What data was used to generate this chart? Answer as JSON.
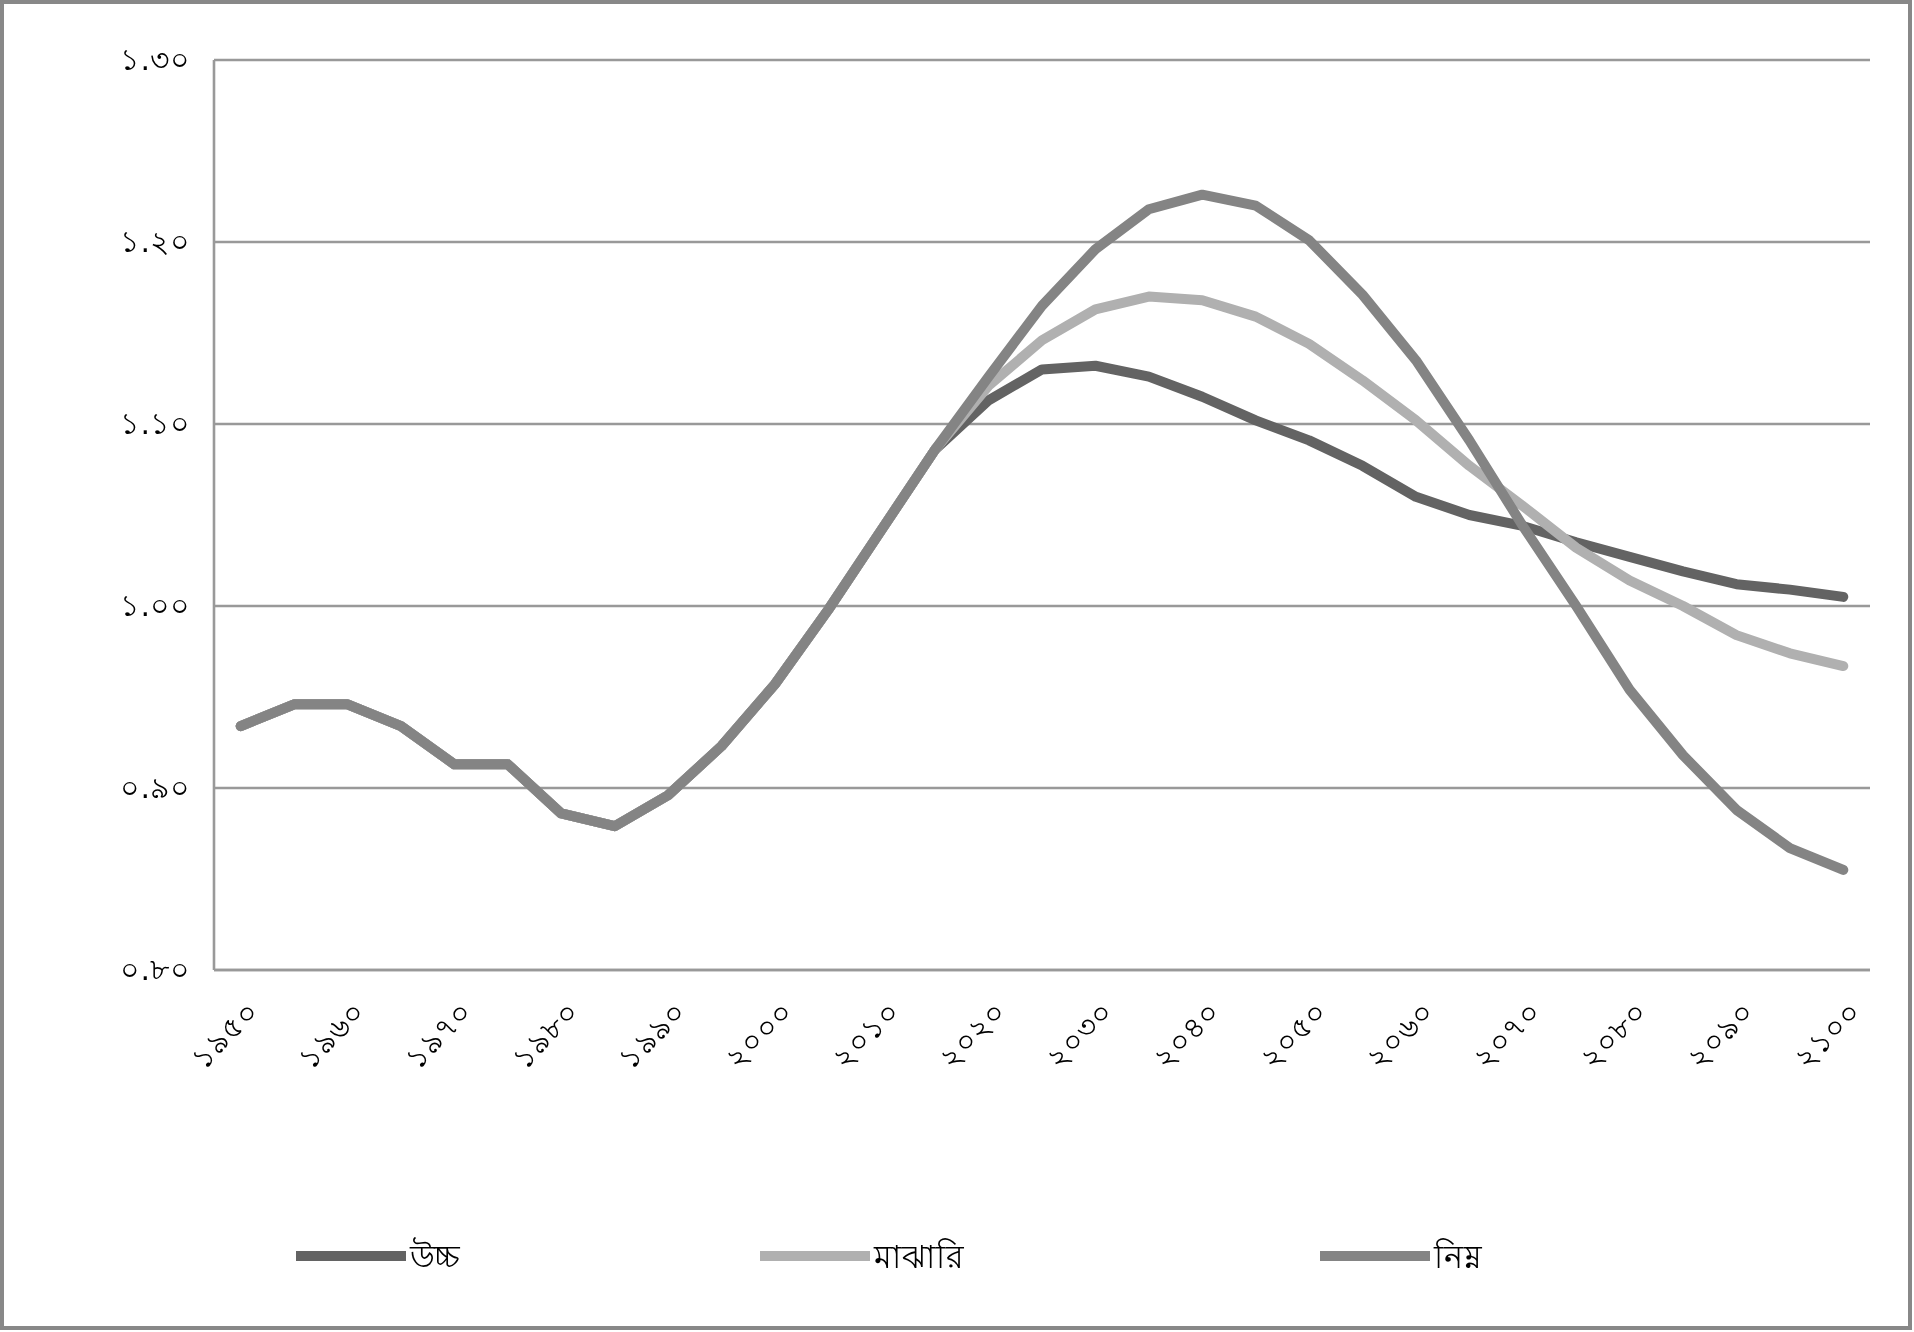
{
  "chart_data": {
    "type": "line",
    "categories": [
      "১৯৫০",
      null,
      "১৯৬০",
      null,
      "১৯৭০",
      null,
      "১৯৮০",
      null,
      "১৯৯০",
      null,
      "২০০০",
      null,
      "২০১০",
      null,
      "২০২০",
      null,
      "২০৩০",
      null,
      "২০৪০",
      null,
      "২০৫০",
      null,
      "২০৬০",
      null,
      "২০৭০",
      null,
      "২০৮০",
      null,
      "২০৯০",
      null,
      "২১০০"
    ],
    "series": [
      {
        "name": "উচ্চ",
        "color": "#636363",
        "values": [
          0.934,
          0.946,
          0.946,
          0.934,
          0.913,
          0.913,
          0.886,
          0.879,
          0.896,
          0.923,
          0.957,
          0.998,
          1.042,
          1.086,
          1.113,
          1.13,
          1.132,
          1.126,
          1.115,
          1.102,
          1.091,
          1.077,
          1.06,
          1.05,
          1.044,
          1.035,
          1.027,
          1.019,
          1.012,
          1.009,
          1.005
        ]
      },
      {
        "name": "মাঝারি",
        "color": "#b0b0b0",
        "values": [
          0.934,
          0.946,
          0.946,
          0.934,
          0.913,
          0.913,
          0.886,
          0.879,
          0.896,
          0.923,
          0.957,
          0.998,
          1.042,
          1.086,
          1.121,
          1.146,
          1.163,
          1.17,
          1.168,
          1.159,
          1.144,
          1.124,
          1.102,
          1.077,
          1.055,
          1.032,
          1.014,
          1.0,
          0.984,
          0.974,
          0.967
        ]
      },
      {
        "name": "নিম্ন",
        "color": "#848484",
        "values": [
          0.934,
          0.946,
          0.946,
          0.934,
          0.913,
          0.913,
          0.886,
          0.879,
          0.896,
          0.923,
          0.957,
          0.998,
          1.042,
          1.086,
          1.126,
          1.165,
          1.196,
          1.218,
          1.226,
          1.22,
          1.201,
          1.171,
          1.135,
          1.091,
          1.044,
          1.0,
          0.954,
          0.918,
          0.888,
          0.867,
          0.855
        ]
      }
    ],
    "ylim": [
      0.8,
      1.3
    ],
    "yticks": [
      {
        "value": 0.8,
        "label": "০.৮০"
      },
      {
        "value": 0.9,
        "label": "০.৯০"
      },
      {
        "value": 1.0,
        "label": "১.০০"
      },
      {
        "value": 1.1,
        "label": "১.১০"
      },
      {
        "value": 1.2,
        "label": "১.২০"
      },
      {
        "value": 1.3,
        "label": "১.৩০"
      }
    ],
    "grid": "y",
    "legend": "bottom"
  }
}
